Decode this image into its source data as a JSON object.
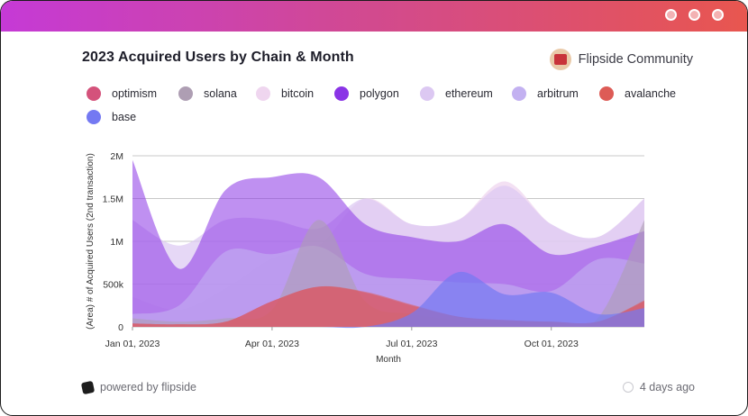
{
  "title": "2023 Acquired Users by Chain & Month",
  "brand": {
    "name": "Flipside Community",
    "icon": "flipside-avatar-icon"
  },
  "footer": {
    "powered_by": "powered by flipside",
    "updated": "4 days ago"
  },
  "colors": {
    "accent_start": "#c53ad6",
    "accent_end": "#e8564f"
  },
  "chart_data": {
    "type": "area",
    "title": "2023 Acquired Users by Chain & Month",
    "xlabel": "Month",
    "ylabel": "(Area) # of Acquired Users (2nd transaction)",
    "x": [
      "2023-01-01",
      "2023-02-01",
      "2023-03-01",
      "2023-04-01",
      "2023-05-01",
      "2023-06-01",
      "2023-07-01",
      "2023-08-01",
      "2023-09-01",
      "2023-10-01",
      "2023-11-01",
      "2023-12-01"
    ],
    "x_ticks": [
      "Jan 01, 2023",
      "Apr 01, 2023",
      "Jul 01, 2023",
      "Oct 01, 2023"
    ],
    "y_ticks": [
      "0",
      "500k",
      "1M",
      "1.5M",
      "2M"
    ],
    "ylim": [
      0,
      2000000
    ],
    "grid": true,
    "legend_position": "top",
    "series": [
      {
        "name": "optimism",
        "color": "#d4527b",
        "values": [
          40000,
          30000,
          60000,
          300000,
          470000,
          400000,
          250000,
          120000,
          80000,
          60000,
          60000,
          300000
        ]
      },
      {
        "name": "solana",
        "color": "#ae9eb3",
        "values": [
          100000,
          60000,
          100000,
          200000,
          1250000,
          300000,
          150000,
          80000,
          60000,
          60000,
          100000,
          1250000
        ]
      },
      {
        "name": "bitcoin",
        "color": "#efd6ef",
        "values": [
          350000,
          200000,
          450000,
          800000,
          950000,
          1500000,
          1200000,
          1250000,
          1700000,
          1200000,
          1050000,
          1500000
        ]
      },
      {
        "name": "polygon",
        "color": "#8a34e6",
        "values": [
          1950000,
          680000,
          1600000,
          1750000,
          1750000,
          1200000,
          1050000,
          1000000,
          1200000,
          850000,
          950000,
          1120000
        ]
      },
      {
        "name": "ethereum",
        "color": "#dcc8f2",
        "values": [
          1250000,
          950000,
          1250000,
          1250000,
          1150000,
          1500000,
          1200000,
          1250000,
          1650000,
          1200000,
          1050000,
          1500000
        ]
      },
      {
        "name": "arbitrum",
        "color": "#c3b1f1",
        "values": [
          150000,
          250000,
          880000,
          850000,
          940000,
          620000,
          560000,
          520000,
          500000,
          420000,
          790000,
          740000
        ]
      },
      {
        "name": "avalanche",
        "color": "#dd5b56",
        "values": [
          40000,
          30000,
          60000,
          300000,
          470000,
          410000,
          260000,
          120000,
          80000,
          60000,
          60000,
          310000
        ]
      },
      {
        "name": "base",
        "color": "#7479f2",
        "values": [
          0,
          0,
          0,
          0,
          0,
          0,
          160000,
          640000,
          380000,
          400000,
          150000,
          220000
        ]
      }
    ]
  }
}
